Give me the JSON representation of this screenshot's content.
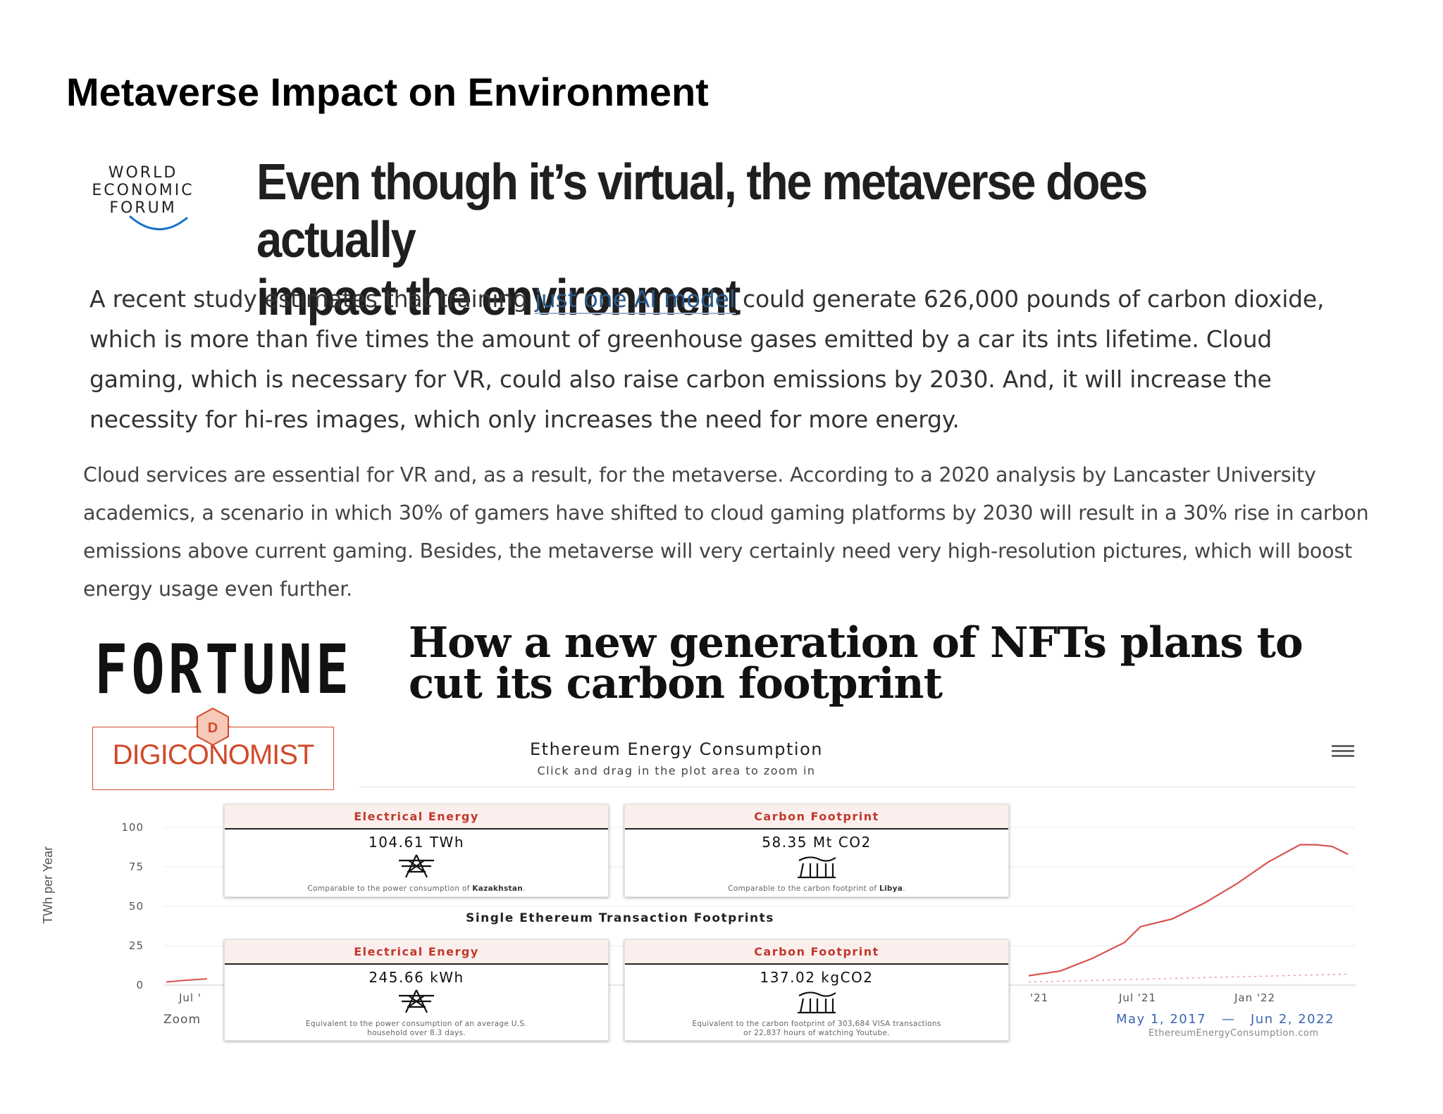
{
  "slide": {
    "title": "Metaverse Impact on Environment"
  },
  "wef": {
    "logo_lines": [
      "WORLD",
      "ECONOMIC",
      "FORUM"
    ],
    "headline_line1": "Even though it’s virtual, the metaverse does actually",
    "headline_line2": "impact the environment",
    "para1_before": "A recent study estimates that training ",
    "para1_link": "just one AI model",
    "para1_after": " could generate 626,000 pounds of carbon dioxide, which is more than five times the amount of greenhouse gases emitted by a car its ints lifetime. Cloud gaming, which is necessary for VR, could also raise carbon emissions by 2030. And, it will increase the necessity for hi-res images, which only increases the need for more energy.",
    "para2": "Cloud services are essential for VR and, as a result, for the metaverse. According to a 2020 analysis by Lancaster University academics, a scenario in which 30% of gamers have shifted to cloud gaming platforms by 2030 will result in a 30% rise in carbon emissions above current gaming. Besides, the metaverse will very certainly need very high-resolution pictures, which will boost energy usage even further.",
    "link_color": "#2a5a8a"
  },
  "fortune": {
    "logo": "FORTUNE",
    "headline_line1": "How a new generation of NFTs plans to",
    "headline_line2": "cut its carbon footprint"
  },
  "digiconomist": {
    "logo": "DIGICONOMIST",
    "brand_color": "#d24a2a"
  },
  "chart": {
    "title": "Ethereum Energy Consumption",
    "subtitle": "Click and drag in the plot area to zoom in",
    "menu_icon": "hamburger-menu-icon",
    "y_axis_title": "TWh per Year",
    "y_ticks": [
      "100",
      "75",
      "50",
      "25",
      "0"
    ],
    "x_ticks": [
      "Jul '",
      "'21",
      "Jul '21",
      "Jan '22"
    ],
    "zoom_label": "Zoom",
    "date_from": "May 1, 2017",
    "date_sep": "—",
    "date_to": "Jun 2, 2022",
    "credit": "EthereumEnergyConsumption.com",
    "line_color": "#d9534f",
    "section_label": "Single Ethereum Transaction Footprints",
    "cards": [
      {
        "header": "Electrical Energy",
        "value": "104.61 TWh",
        "icon": "power-pylon-icon",
        "note_before": "Comparable to the power consumption of ",
        "note_bold": "Kazakhstan",
        "note_after": ".",
        "note_line2": ""
      },
      {
        "header": "Carbon Footprint",
        "value": "58.35 Mt CO2",
        "icon": "factory-emissions-icon",
        "note_before": "Comparable to the carbon footprint of ",
        "note_bold": "Libya",
        "note_after": ".",
        "note_line2": ""
      },
      {
        "header": "Electrical Energy",
        "value": "245.66 kWh",
        "icon": "power-pylon-icon",
        "note_before": "Equivalent to the power consumption of an average U.S.",
        "note_bold": "",
        "note_after": "",
        "note_line2": "household over 8.3 days."
      },
      {
        "header": "Carbon Footprint",
        "value": "137.02 kgCO2",
        "icon": "factory-emissions-icon",
        "note_before": "Equivalent to the carbon footprint of 303,684 VISA transactions",
        "note_bold": "",
        "note_after": "",
        "note_line2": "or 22,837 hours of watching Youtube."
      }
    ]
  },
  "chart_data": {
    "type": "line",
    "title": "Ethereum Energy Consumption",
    "ylabel": "TWh per Year",
    "ylim": [
      0,
      100
    ],
    "x_range": [
      "May 1, 2017",
      "Jun 2, 2022"
    ],
    "series": [
      {
        "x": [
          "2020-10",
          "2020-12",
          "2021-02",
          "2021-04",
          "2021-05",
          "2021-07",
          "2021-09",
          "2021-11",
          "2022-01",
          "2022-03",
          "2022-04",
          "2022-05",
          "2022-06"
        ],
        "values": [
          6,
          9,
          17,
          27,
          37,
          42,
          52,
          64,
          78,
          89,
          89,
          88,
          83
        ]
      },
      {
        "x": [
          "2020-10",
          "2021-02",
          "2021-06",
          "2021-10",
          "2022-02",
          "2022-06"
        ],
        "values": [
          2,
          3,
          4,
          5,
          6,
          7
        ]
      }
    ]
  }
}
